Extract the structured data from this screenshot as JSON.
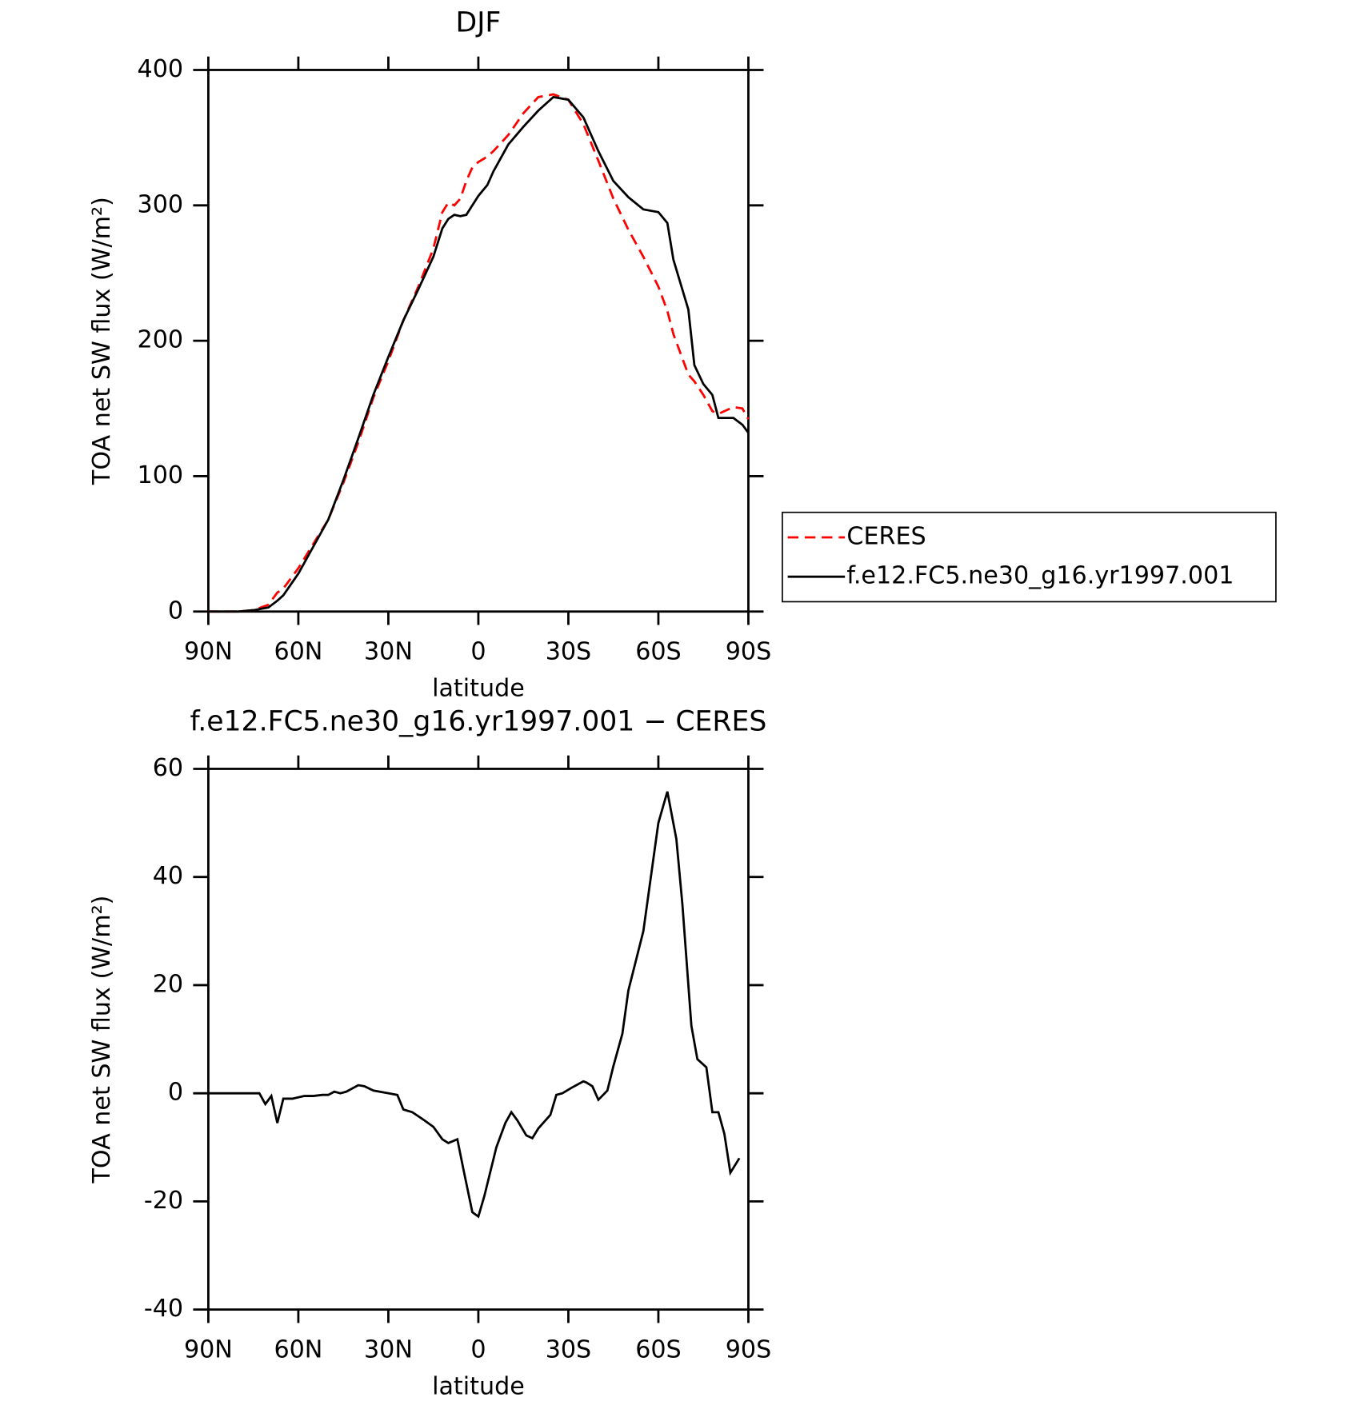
{
  "chart_data": [
    {
      "type": "line",
      "title": "DJF",
      "xlabel": "latitude",
      "ylabel": "TOA net SW flux (W/m²)",
      "x": [
        90,
        80,
        75,
        70,
        67,
        65,
        60,
        55,
        50,
        45,
        40,
        35,
        30,
        25,
        20,
        15,
        12,
        10,
        8,
        6,
        4,
        2,
        0,
        -3,
        -5,
        -10,
        -15,
        -20,
        -25,
        -30,
        -35,
        -40,
        -45,
        -50,
        -55,
        -60,
        -63,
        -65,
        -70,
        -72,
        -75,
        -78,
        -80,
        -85,
        -88,
        -90
      ],
      "series": [
        {
          "name": "CERES",
          "color": "#ff0000",
          "dashed": true,
          "values": [
            0,
            0,
            1,
            5,
            14,
            17,
            32,
            50,
            68,
            95,
            125,
            158,
            185,
            215,
            240,
            268,
            295,
            302,
            300,
            305,
            318,
            328,
            332,
            336,
            340,
            352,
            368,
            380,
            382,
            378,
            360,
            333,
            305,
            282,
            262,
            240,
            222,
            205,
            175,
            170,
            160,
            148,
            146,
            151,
            150,
            142
          ]
        },
        {
          "name": "f.e12.FC5.ne30_g16.yr1997.001",
          "color": "#000000",
          "dashed": false,
          "values": [
            0,
            0,
            1,
            3,
            8,
            12,
            28,
            48,
            68,
            97,
            128,
            160,
            188,
            215,
            238,
            262,
            283,
            290,
            293,
            292,
            293,
            300,
            307,
            315,
            325,
            345,
            358,
            370,
            380,
            378,
            365,
            340,
            318,
            306,
            297,
            295,
            287,
            260,
            223,
            182,
            168,
            160,
            143,
            143,
            138,
            132
          ]
        }
      ],
      "xlim": [
        90,
        -90
      ],
      "xticks": [
        {
          "value": 90,
          "label": "90N"
        },
        {
          "value": 60,
          "label": "60N"
        },
        {
          "value": 30,
          "label": "30N"
        },
        0,
        {
          "value": -30,
          "label": "30S"
        },
        {
          "value": -60,
          "label": "60S"
        },
        {
          "value": -90,
          "label": "90S"
        }
      ],
      "ylim": [
        0,
        400
      ],
      "yticks": [
        0,
        100,
        200,
        300,
        400
      ],
      "legend": "outside-right"
    },
    {
      "type": "line",
      "title": "f.e12.FC5.ne30_g16.yr1997.001 − CERES",
      "xlabel": "latitude",
      "ylabel": "TOA net SW flux (W/m²)",
      "x": [
        90,
        80,
        73,
        71,
        69,
        67,
        65,
        62,
        58,
        55,
        52,
        50,
        48,
        46,
        44,
        40,
        38,
        35,
        30,
        27,
        25,
        22,
        18,
        15,
        12,
        10,
        7,
        5,
        2,
        0,
        -2,
        -6,
        -9,
        -11,
        -13,
        -16,
        -18,
        -20,
        -24,
        -26,
        -28,
        -31,
        -35,
        -36,
        -38,
        -40,
        -43,
        -45,
        -48,
        -50,
        -55,
        -60,
        -63,
        -66,
        -68,
        -71,
        -73,
        -76,
        -78,
        -80,
        -82,
        -84,
        -87
      ],
      "series": [
        {
          "color": "#000000",
          "dashed": false,
          "values": [
            0,
            0,
            0,
            -2,
            -0.5,
            -5.5,
            -1,
            -1,
            -0.5,
            -0.5,
            -0.3,
            -0.3,
            0.3,
            0,
            0.3,
            1.5,
            1.3,
            0.5,
            0,
            -0.3,
            -3,
            -3.5,
            -5,
            -6.2,
            -8.5,
            -9.2,
            -8.5,
            -14,
            -22,
            -22.8,
            -19,
            -10,
            -5.5,
            -3.5,
            -5,
            -7.8,
            -8.3,
            -6.5,
            -4,
            -0.3,
            0,
            1,
            2.2,
            2,
            1.3,
            -1.2,
            0.5,
            5,
            11,
            19,
            30,
            50,
            55.8,
            47,
            35,
            12.5,
            6.3,
            4.8,
            -3.5,
            -3.5,
            -7.5,
            -14.7,
            -12
          ]
        }
      ],
      "xlim": [
        90,
        -90
      ],
      "xticks": [
        {
          "value": 90,
          "label": "90N"
        },
        {
          "value": 60,
          "label": "60N"
        },
        {
          "value": 30,
          "label": "30N"
        },
        0,
        {
          "value": -30,
          "label": "30S"
        },
        {
          "value": -60,
          "label": "60S"
        },
        {
          "value": -90,
          "label": "90S"
        }
      ],
      "ylim": [
        -40,
        60
      ],
      "yticks": [
        -40,
        -20,
        0,
        20,
        40,
        60
      ]
    }
  ]
}
